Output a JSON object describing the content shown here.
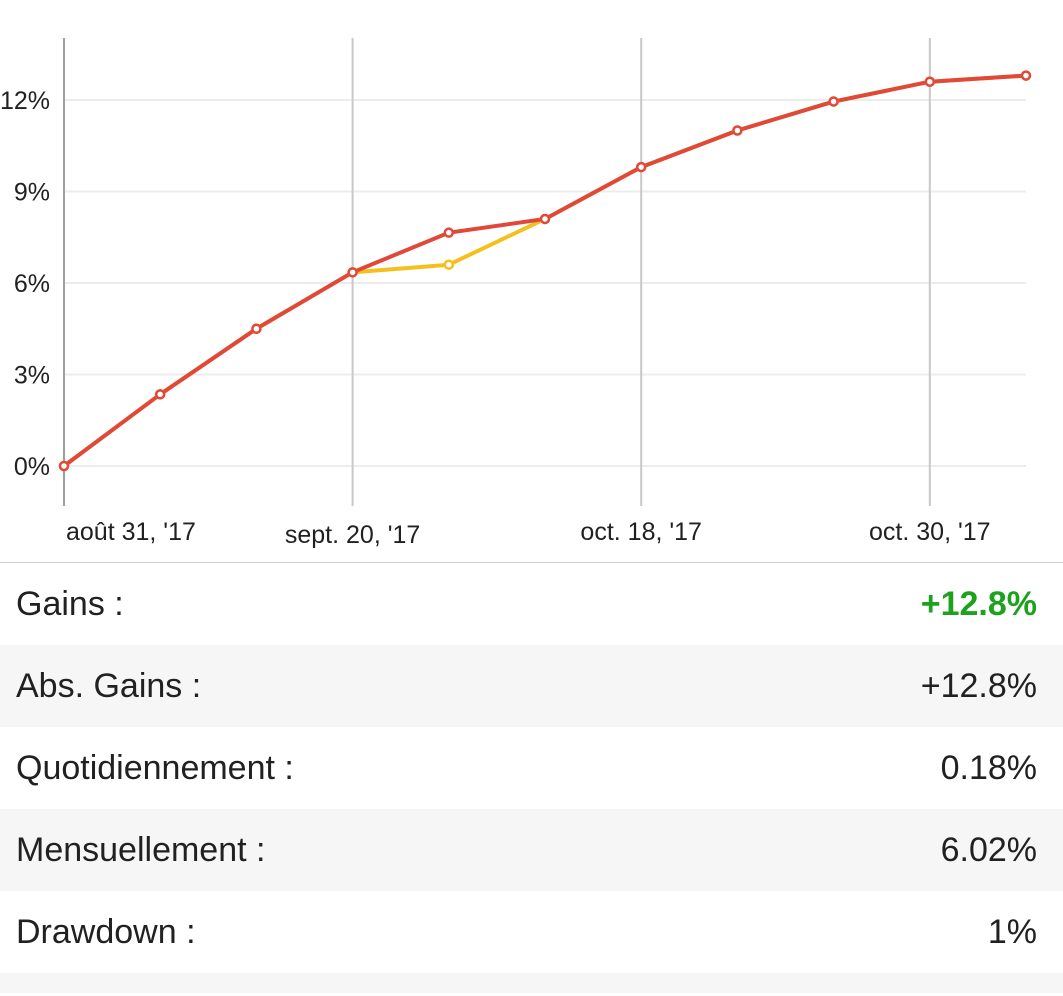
{
  "chart_data": {
    "type": "line",
    "x": [
      "août 31, '17",
      "",
      "",
      "sept. 20, '17",
      "",
      "",
      "oct. 18, '17",
      "",
      "",
      "oct. 30, '17",
      ""
    ],
    "x_tick_labels": [
      "août 31, '17",
      "sept. 20, '17",
      "oct. 18, '17",
      "oct. 30, '17"
    ],
    "y_tick_labels": [
      "0%",
      "3%",
      "6%",
      "9%",
      "12%"
    ],
    "ylim": [
      0,
      13.5
    ],
    "y_unit": "%",
    "grid": true,
    "series": [
      {
        "color": "#f4c01e",
        "values": [
          0,
          2.35,
          4.5,
          6.35,
          6.6,
          8.1,
          9.8,
          11.0,
          11.95,
          12.6,
          12.8
        ]
      },
      {
        "color": "#e0483a",
        "values": [
          0,
          2.35,
          4.5,
          6.35,
          7.65,
          8.1,
          9.8,
          11.0,
          11.95,
          12.6,
          12.8
        ]
      }
    ]
  },
  "stats": [
    {
      "label": "Gains :",
      "value": "+12.8%",
      "positive": true
    },
    {
      "label": "Abs. Gains :",
      "value": "+12.8%",
      "positive": false
    },
    {
      "label": "Quotidiennement :",
      "value": "0.18%",
      "positive": false
    },
    {
      "label": "Mensuellement :",
      "value": "6.02%",
      "positive": false
    },
    {
      "label": "Drawdown :",
      "value": "1%",
      "positive": false
    }
  ]
}
